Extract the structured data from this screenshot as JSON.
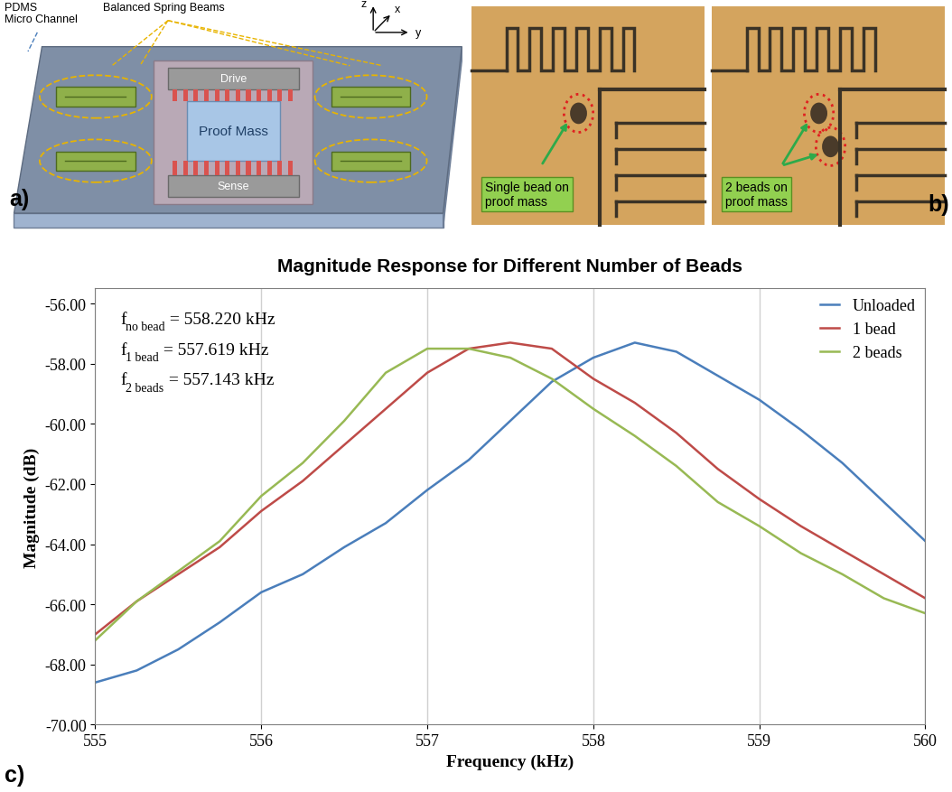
{
  "diagram": {
    "panel_label": "a)",
    "channel_label": "PDMS\nMicro Channel",
    "springs_label": "Balanced Spring Beams",
    "drive_label": "Drive",
    "proof_mass_label": "Proof Mass",
    "sense_label": "Sense",
    "axis_labels": {
      "z": "z",
      "x": "x",
      "y": "y"
    }
  },
  "photos": {
    "panel_label": "b)",
    "images": [
      {
        "caption": "Single bead on\nproof mass",
        "beads": 1
      },
      {
        "caption": "2 beads on\nproof mass",
        "beads": 2
      }
    ]
  },
  "chart_data": {
    "panel_label": "c)",
    "type": "line",
    "title": "Magnitude Response for Different Number of Beads",
    "x_label": "Frequency (kHz)",
    "y_label": "Magnitude (dB)",
    "x": [
      555,
      555.25,
      555.5,
      555.75,
      556,
      556.25,
      556.5,
      556.75,
      557,
      557.25,
      557.5,
      557.75,
      558,
      558.25,
      558.5,
      558.75,
      559,
      559.25,
      559.5,
      559.75,
      560
    ],
    "series": [
      {
        "name": "Unloaded",
        "color": "#4a7ebb",
        "values": [
          -68.6,
          -68.2,
          -67.5,
          -66.6,
          -65.6,
          -65.0,
          -64.1,
          -63.3,
          -62.2,
          -61.2,
          -59.9,
          -58.6,
          -57.8,
          -57.3,
          -57.6,
          -58.4,
          -59.2,
          -60.2,
          -61.3,
          -62.6,
          -63.9
        ]
      },
      {
        "name": "1 bead",
        "color": "#be4b48",
        "values": [
          -67.0,
          -65.9,
          -65.0,
          -64.1,
          -62.9,
          -61.9,
          -60.7,
          -59.5,
          -58.3,
          -57.5,
          -57.3,
          -57.5,
          -58.5,
          -59.3,
          -60.3,
          -61.5,
          -62.5,
          -63.4,
          -64.2,
          -65.0,
          -65.8
        ]
      },
      {
        "name": "2 beads",
        "color": "#98b954",
        "values": [
          -67.2,
          -65.9,
          -64.9,
          -63.9,
          -62.4,
          -61.3,
          -59.9,
          -58.3,
          -57.5,
          -57.5,
          -57.8,
          -58.5,
          -59.5,
          -60.4,
          -61.4,
          -62.6,
          -63.4,
          -64.3,
          -65.0,
          -65.8,
          -66.3
        ]
      }
    ],
    "annotations": [
      {
        "text": "f",
        "subscript": "no bead",
        "suffix": " = 558.220 kHz"
      },
      {
        "text": "f",
        "subscript": "1 bead",
        "suffix": " = 557.619 kHz"
      },
      {
        "text": "f",
        "subscript": "2 beads",
        "suffix": " = 557.143 kHz"
      }
    ],
    "xlim": [
      555,
      560
    ],
    "xticks": [
      555,
      556,
      557,
      558,
      559,
      560
    ],
    "ylim": [
      -70,
      -55.5
    ],
    "yticks": [
      {
        "value": -70,
        "label": "-70.00"
      },
      {
        "value": -68,
        "label": "-68.00"
      },
      {
        "value": -66,
        "label": "-66.00"
      },
      {
        "value": -64,
        "label": "-64.00"
      },
      {
        "value": -62,
        "label": "-62.00"
      },
      {
        "value": -60,
        "label": "-60.00"
      },
      {
        "value": -58,
        "label": "-58.00"
      },
      {
        "value": -56,
        "label": "-56.00"
      }
    ],
    "grid": "x",
    "legend": "upper right"
  }
}
